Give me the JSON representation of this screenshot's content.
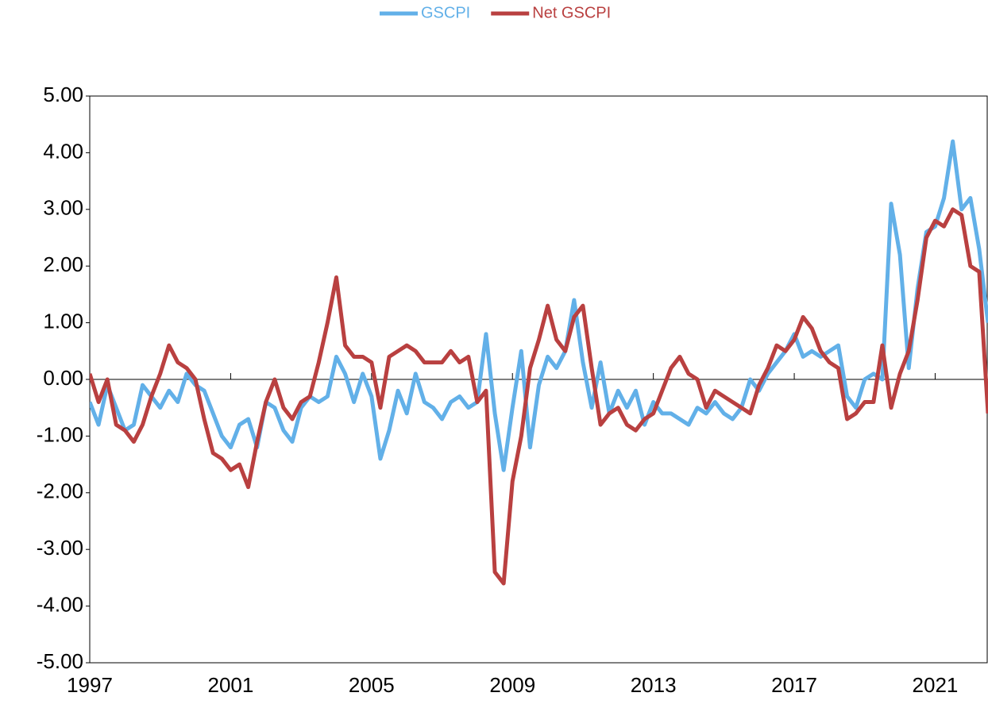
{
  "chart_data": {
    "type": "line",
    "x": [
      1997,
      1997.25,
      1997.5,
      1997.75,
      1998,
      1998.25,
      1998.5,
      1998.75,
      1999,
      1999.25,
      1999.5,
      1999.75,
      2000,
      2000.25,
      2000.5,
      2000.75,
      2001,
      2001.25,
      2001.5,
      2001.75,
      2002,
      2002.25,
      2002.5,
      2002.75,
      2003,
      2003.25,
      2003.5,
      2003.75,
      2004,
      2004.25,
      2004.5,
      2004.75,
      2005,
      2005.25,
      2005.5,
      2005.75,
      2006,
      2006.25,
      2006.5,
      2006.75,
      2007,
      2007.25,
      2007.5,
      2007.75,
      2008,
      2008.25,
      2008.5,
      2008.75,
      2009,
      2009.25,
      2009.5,
      2009.75,
      2010,
      2010.25,
      2010.5,
      2010.75,
      2011,
      2011.25,
      2011.5,
      2011.75,
      2012,
      2012.25,
      2012.5,
      2012.75,
      2013,
      2013.25,
      2013.5,
      2013.75,
      2014,
      2014.25,
      2014.5,
      2014.75,
      2015,
      2015.25,
      2015.5,
      2015.75,
      2016,
      2016.25,
      2016.5,
      2016.75,
      2017,
      2017.25,
      2017.5,
      2017.75,
      2018,
      2018.25,
      2018.5,
      2018.75,
      2019,
      2019.25,
      2019.5,
      2019.75,
      2020,
      2020.25,
      2020.5,
      2020.75,
      2021,
      2021.25,
      2021.5,
      2021.75,
      2022,
      2022.25,
      2022.5
    ],
    "series": [
      {
        "name": "GSCPI",
        "color": "#62b0e8",
        "values": [
          -0.4,
          -0.8,
          -0.1,
          -0.5,
          -0.9,
          -0.8,
          -0.1,
          -0.3,
          -0.5,
          -0.2,
          -0.4,
          0.1,
          -0.1,
          -0.2,
          -0.6,
          -1.0,
          -1.2,
          -0.8,
          -0.7,
          -1.2,
          -0.4,
          -0.5,
          -0.9,
          -1.1,
          -0.5,
          -0.3,
          -0.4,
          -0.3,
          0.4,
          0.1,
          -0.4,
          0.1,
          -0.3,
          -1.4,
          -0.9,
          -0.2,
          -0.6,
          0.1,
          -0.4,
          -0.5,
          -0.7,
          -0.4,
          -0.3,
          -0.5,
          -0.4,
          0.8,
          -0.6,
          -1.6,
          -0.5,
          0.5,
          -1.2,
          -0.1,
          0.4,
          0.2,
          0.5,
          1.4,
          0.3,
          -0.5,
          0.3,
          -0.6,
          -0.2,
          -0.5,
          -0.2,
          -0.8,
          -0.4,
          -0.6,
          -0.6,
          -0.7,
          -0.8,
          -0.5,
          -0.6,
          -0.4,
          -0.6,
          -0.7,
          -0.5,
          0.0,
          -0.2,
          0.1,
          0.3,
          0.5,
          0.8,
          0.4,
          0.5,
          0.4,
          0.5,
          0.6,
          -0.3,
          -0.5,
          0.0,
          0.1,
          0.0,
          3.1,
          2.2,
          0.2,
          1.6,
          2.6,
          2.7,
          3.2,
          4.2,
          3.0,
          3.2,
          2.3,
          1.0
        ]
      },
      {
        "name": "Net GSCPI",
        "color": "#b94040",
        "values": [
          0.1,
          -0.4,
          0.0,
          -0.8,
          -0.9,
          -1.1,
          -0.8,
          -0.3,
          0.1,
          0.6,
          0.3,
          0.2,
          0.0,
          -0.7,
          -1.3,
          -1.4,
          -1.6,
          -1.5,
          -1.9,
          -1.1,
          -0.4,
          0.0,
          -0.5,
          -0.7,
          -0.4,
          -0.3,
          0.3,
          1.0,
          1.8,
          0.6,
          0.4,
          0.4,
          0.3,
          -0.5,
          0.4,
          0.5,
          0.6,
          0.5,
          0.3,
          0.3,
          0.3,
          0.5,
          0.3,
          0.4,
          -0.4,
          -0.2,
          -3.4,
          -3.6,
          -1.8,
          -1.0,
          0.2,
          0.7,
          1.3,
          0.7,
          0.5,
          1.1,
          1.3,
          0.2,
          -0.8,
          -0.6,
          -0.5,
          -0.8,
          -0.9,
          -0.7,
          -0.6,
          -0.2,
          0.2,
          0.4,
          0.1,
          0.0,
          -0.5,
          -0.2,
          -0.3,
          -0.4,
          -0.5,
          -0.6,
          -0.1,
          0.2,
          0.6,
          0.5,
          0.7,
          1.1,
          0.9,
          0.5,
          0.3,
          0.2,
          -0.7,
          -0.6,
          -0.4,
          -0.4,
          0.6,
          -0.5,
          0.1,
          0.5,
          1.4,
          2.5,
          2.8,
          2.7,
          3.0,
          2.9,
          2.0,
          1.9,
          -0.6
        ]
      }
    ],
    "xlim": [
      1997,
      2022.5
    ],
    "xticks": [
      1997,
      2001,
      2005,
      2009,
      2013,
      2017,
      2021
    ],
    "ylim": [
      -5,
      5
    ],
    "yticks": [
      {
        "value": -5,
        "label": "-5.00"
      },
      {
        "value": -4,
        "label": "-4.00"
      },
      {
        "value": -3,
        "label": "-3.00"
      },
      {
        "value": -2,
        "label": "-2.00"
      },
      {
        "value": -1,
        "label": "-1.00"
      },
      {
        "value": 0,
        "label": "0.00"
      },
      {
        "value": 1,
        "label": "1.00"
      },
      {
        "value": 2,
        "label": "2.00"
      },
      {
        "value": 3,
        "label": "3.00"
      },
      {
        "value": 4,
        "label": "4.00"
      },
      {
        "value": 5,
        "label": "5.00"
      }
    ],
    "legend": "top"
  }
}
